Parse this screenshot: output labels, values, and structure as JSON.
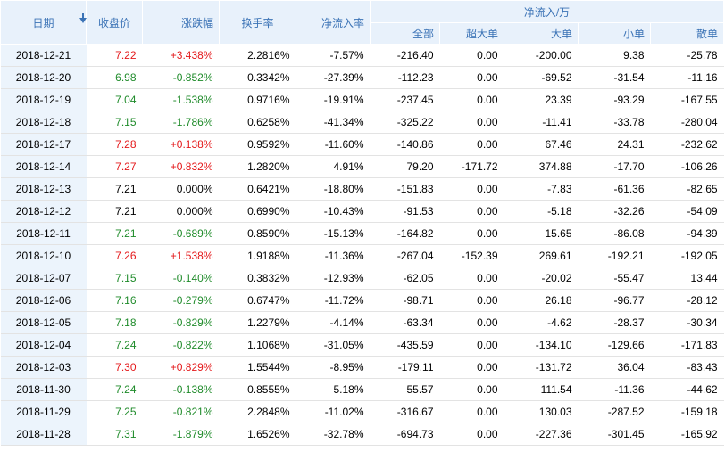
{
  "headers": {
    "date": "日期",
    "close": "收盘价",
    "change": "涨跌幅",
    "turnover": "换手率",
    "net_inflow_rate": "净流入率",
    "net_inflow_group": "净流入/万",
    "all": "全部",
    "super_large": "超大单",
    "large": "大单",
    "small": "小单",
    "retail": "散单"
  },
  "colors": {
    "up": "#e4191b",
    "down": "#1f8b2a",
    "header_bg": "#e8f1fb",
    "header_text": "#3b73b6"
  },
  "rows": [
    {
      "date": "2018-12-21",
      "close": "7.22",
      "change": "+3.438%",
      "turnover": "2.2816%",
      "rate": "-7.57%",
      "all": "-216.40",
      "super": "0.00",
      "large": "-200.00",
      "small": "9.38",
      "retail": "-25.78",
      "trend": "up"
    },
    {
      "date": "2018-12-20",
      "close": "6.98",
      "change": "-0.852%",
      "turnover": "0.3342%",
      "rate": "-27.39%",
      "all": "-112.23",
      "super": "0.00",
      "large": "-69.52",
      "small": "-31.54",
      "retail": "-11.16",
      "trend": "down"
    },
    {
      "date": "2018-12-19",
      "close": "7.04",
      "change": "-1.538%",
      "turnover": "0.9716%",
      "rate": "-19.91%",
      "all": "-237.45",
      "super": "0.00",
      "large": "23.39",
      "small": "-93.29",
      "retail": "-167.55",
      "trend": "down"
    },
    {
      "date": "2018-12-18",
      "close": "7.15",
      "change": "-1.786%",
      "turnover": "0.6258%",
      "rate": "-41.34%",
      "all": "-325.22",
      "super": "0.00",
      "large": "-11.41",
      "small": "-33.78",
      "retail": "-280.04",
      "trend": "down"
    },
    {
      "date": "2018-12-17",
      "close": "7.28",
      "change": "+0.138%",
      "turnover": "0.9592%",
      "rate": "-11.60%",
      "all": "-140.86",
      "super": "0.00",
      "large": "67.46",
      "small": "24.31",
      "retail": "-232.62",
      "trend": "up"
    },
    {
      "date": "2018-12-14",
      "close": "7.27",
      "change": "+0.832%",
      "turnover": "1.2820%",
      "rate": "4.91%",
      "all": "79.20",
      "super": "-171.72",
      "large": "374.88",
      "small": "-17.70",
      "retail": "-106.26",
      "trend": "up"
    },
    {
      "date": "2018-12-13",
      "close": "7.21",
      "change": "0.000%",
      "turnover": "0.6421%",
      "rate": "-18.80%",
      "all": "-151.83",
      "super": "0.00",
      "large": "-7.83",
      "small": "-61.36",
      "retail": "-82.65",
      "trend": "flat"
    },
    {
      "date": "2018-12-12",
      "close": "7.21",
      "change": "0.000%",
      "turnover": "0.6990%",
      "rate": "-10.43%",
      "all": "-91.53",
      "super": "0.00",
      "large": "-5.18",
      "small": "-32.26",
      "retail": "-54.09",
      "trend": "flat"
    },
    {
      "date": "2018-12-11",
      "close": "7.21",
      "change": "-0.689%",
      "turnover": "0.8590%",
      "rate": "-15.13%",
      "all": "-164.82",
      "super": "0.00",
      "large": "15.65",
      "small": "-86.08",
      "retail": "-94.39",
      "trend": "down"
    },
    {
      "date": "2018-12-10",
      "close": "7.26",
      "change": "+1.538%",
      "turnover": "1.9188%",
      "rate": "-11.36%",
      "all": "-267.04",
      "super": "-152.39",
      "large": "269.61",
      "small": "-192.21",
      "retail": "-192.05",
      "trend": "up"
    },
    {
      "date": "2018-12-07",
      "close": "7.15",
      "change": "-0.140%",
      "turnover": "0.3832%",
      "rate": "-12.93%",
      "all": "-62.05",
      "super": "0.00",
      "large": "-20.02",
      "small": "-55.47",
      "retail": "13.44",
      "trend": "down"
    },
    {
      "date": "2018-12-06",
      "close": "7.16",
      "change": "-0.279%",
      "turnover": "0.6747%",
      "rate": "-11.72%",
      "all": "-98.71",
      "super": "0.00",
      "large": "26.18",
      "small": "-96.77",
      "retail": "-28.12",
      "trend": "down"
    },
    {
      "date": "2018-12-05",
      "close": "7.18",
      "change": "-0.829%",
      "turnover": "1.2279%",
      "rate": "-4.14%",
      "all": "-63.34",
      "super": "0.00",
      "large": "-4.62",
      "small": "-28.37",
      "retail": "-30.34",
      "trend": "down"
    },
    {
      "date": "2018-12-04",
      "close": "7.24",
      "change": "-0.822%",
      "turnover": "1.1068%",
      "rate": "-31.05%",
      "all": "-435.59",
      "super": "0.00",
      "large": "-134.10",
      "small": "-129.66",
      "retail": "-171.83",
      "trend": "down"
    },
    {
      "date": "2018-12-03",
      "close": "7.30",
      "change": "+0.829%",
      "turnover": "1.5544%",
      "rate": "-8.95%",
      "all": "-179.11",
      "super": "0.00",
      "large": "-131.72",
      "small": "36.04",
      "retail": "-83.43",
      "trend": "up"
    },
    {
      "date": "2018-11-30",
      "close": "7.24",
      "change": "-0.138%",
      "turnover": "0.8555%",
      "rate": "5.18%",
      "all": "55.57",
      "super": "0.00",
      "large": "111.54",
      "small": "-11.36",
      "retail": "-44.62",
      "trend": "down"
    },
    {
      "date": "2018-11-29",
      "close": "7.25",
      "change": "-0.821%",
      "turnover": "2.2848%",
      "rate": "-11.02%",
      "all": "-316.67",
      "super": "0.00",
      "large": "130.03",
      "small": "-287.52",
      "retail": "-159.18",
      "trend": "down"
    },
    {
      "date": "2018-11-28",
      "close": "7.31",
      "change": "-1.879%",
      "turnover": "1.6526%",
      "rate": "-32.78%",
      "all": "-694.73",
      "super": "0.00",
      "large": "-227.36",
      "small": "-301.45",
      "retail": "-165.92",
      "trend": "down"
    }
  ]
}
